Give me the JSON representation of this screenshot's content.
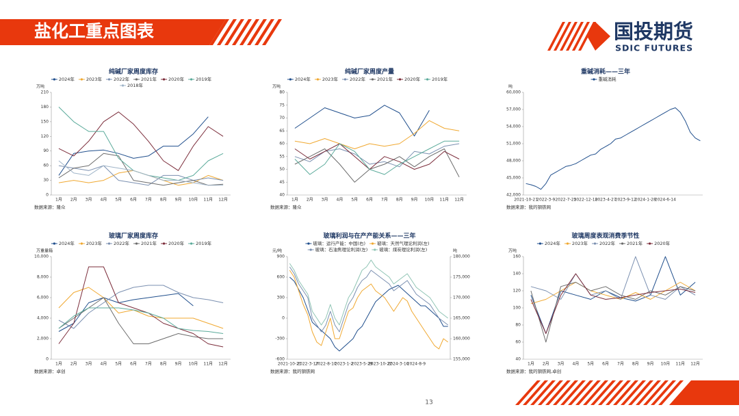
{
  "header": {
    "title": "盐化工重点图表",
    "logo_cn": "国投期货",
    "logo_en": "SDIC FUTURES"
  },
  "page_number": "13",
  "chart_data": [
    {
      "type": "line",
      "title": "纯碱厂家周度库存",
      "y_label": "万吨",
      "source": "数据来源：隆众",
      "categories": [
        "1月",
        "2月",
        "3月",
        "4月",
        "5月",
        "6月",
        "7月",
        "8月",
        "9月",
        "10月",
        "11月",
        "12月"
      ],
      "ylim": [
        0,
        210
      ],
      "yticks": [
        0,
        30,
        60,
        90,
        120,
        150,
        180,
        210
      ],
      "series": [
        {
          "name": "2024年",
          "color": "#1f4e8c",
          "values": [
            40,
            85,
            90,
            92,
            85,
            75,
            80,
            100,
            100,
            125,
            160,
            null
          ]
        },
        {
          "name": "2023年",
          "color": "#f0a830",
          "values": [
            25,
            30,
            25,
            30,
            45,
            50,
            40,
            30,
            20,
            25,
            40,
            30
          ]
        },
        {
          "name": "2022年",
          "color": "#7a8fb0",
          "values": [
            60,
            55,
            50,
            60,
            30,
            25,
            20,
            40,
            40,
            30,
            35,
            30
          ]
        },
        {
          "name": "2021年",
          "color": "#6b6b6b",
          "values": [
            35,
            55,
            60,
            85,
            80,
            30,
            25,
            20,
            25,
            30,
            20,
            22
          ]
        },
        {
          "name": "2020年",
          "color": "#7b2c3a",
          "values": [
            95,
            80,
            110,
            150,
            170,
            145,
            110,
            70,
            50,
            100,
            140,
            120
          ]
        },
        {
          "name": "2019年",
          "color": "#5aaa9a",
          "values": [
            180,
            150,
            130,
            130,
            75,
            50,
            40,
            35,
            30,
            40,
            70,
            85
          ]
        },
        {
          "name": "2018年",
          "color": "#9fb4c8",
          "values": [
            70,
            45,
            40,
            60,
            55,
            50,
            40,
            30,
            30,
            25,
            20,
            20
          ]
        }
      ]
    },
    {
      "type": "line",
      "title": "纯碱厂家周度产量",
      "y_label": "万吨",
      "source": "数据来源：隆众",
      "categories": [
        "1月",
        "2月",
        "3月",
        "4月",
        "5月",
        "6月",
        "7月",
        "8月",
        "9月",
        "10月",
        "11月",
        "12月"
      ],
      "ylim": [
        40,
        80
      ],
      "yticks": [
        40,
        45,
        50,
        55,
        60,
        65,
        70,
        75,
        80
      ],
      "series": [
        {
          "name": "2024年",
          "color": "#1f4e8c",
          "values": [
            66,
            70,
            74,
            72,
            70,
            71,
            75,
            72,
            63,
            73,
            null,
            null
          ]
        },
        {
          "name": "2023年",
          "color": "#f0a830",
          "values": [
            61,
            60,
            62,
            60,
            58,
            60,
            59,
            60,
            64,
            69,
            66,
            65
          ]
        },
        {
          "name": "2022年",
          "color": "#7a8fb0",
          "values": [
            55,
            53,
            57,
            58,
            56,
            52,
            53,
            51,
            57,
            56,
            59,
            60
          ]
        },
        {
          "name": "2021年",
          "color": "#6b6b6b",
          "values": [
            52,
            55,
            58,
            52,
            45,
            50,
            52,
            55,
            51,
            55,
            58,
            47
          ]
        },
        {
          "name": "2020年",
          "color": "#7b2c3a",
          "values": [
            58,
            54,
            57,
            60,
            55,
            50,
            55,
            53,
            50,
            52,
            57,
            54
          ]
        },
        {
          "name": "2019年",
          "color": "#5aaa9a",
          "values": [
            54,
            48,
            52,
            60,
            57,
            50,
            48,
            52,
            55,
            58,
            61,
            61
          ]
        }
      ]
    },
    {
      "type": "line",
      "title": "重碱消耗——三年",
      "y_label": "吨",
      "source": "数据来源：我的钢铁网",
      "categories": [
        "2021-10-21",
        null,
        null,
        null,
        "2022-3-9",
        null,
        null,
        null,
        "2022-7-25",
        null,
        null,
        null,
        "2022-12-10",
        null,
        null,
        null,
        "2023-4-27",
        null,
        null,
        null,
        "2023-9-12",
        null,
        null,
        null,
        "2024-1-28",
        null,
        null,
        null,
        "2024-6-14",
        null,
        null,
        null,
        null,
        null,
        null,
        null
      ],
      "ylim": [
        42000,
        60000
      ],
      "yticks": [
        {
          "value": 42000,
          "label": "42,000"
        },
        {
          "value": 45000,
          "label": "45,000"
        },
        {
          "value": 48000,
          "label": "48,000"
        },
        {
          "value": 51000,
          "label": "51,000"
        },
        {
          "value": 54000,
          "label": "54,000"
        },
        {
          "value": 57000,
          "label": "57,000"
        },
        {
          "value": 60000,
          "label": "60,000"
        }
      ],
      "series": [
        {
          "name": "重碱消耗",
          "color": "#1f4e8c",
          "values": [
            44000,
            43800,
            43500,
            43000,
            44000,
            45500,
            46000,
            46500,
            47000,
            47200,
            47500,
            48000,
            48500,
            49000,
            49200,
            50000,
            50500,
            51000,
            51800,
            52000,
            52500,
            53000,
            53500,
            54000,
            54500,
            55000,
            55500,
            56000,
            56500,
            57000,
            57300,
            56500,
            55000,
            53000,
            52000,
            51500
          ]
        }
      ]
    },
    {
      "type": "line",
      "title": "玻璃厂家周度库存",
      "y_label": "万重量箱",
      "source": "数据来源：卓创",
      "categories": [
        "1月",
        "2月",
        "3月",
        "4月",
        "5月",
        "6月",
        "7月",
        "8月",
        "9月",
        "10月",
        "11月",
        "12月"
      ],
      "ylim": [
        0,
        10000
      ],
      "yticks": [
        0,
        {
          "value": 2000,
          "label": "2,000"
        },
        {
          "value": 4000,
          "label": "4,000"
        },
        {
          "value": 6000,
          "label": "6,000"
        },
        {
          "value": 8000,
          "label": "8,000"
        },
        {
          "value": 10000,
          "label": "10,000"
        }
      ],
      "series": [
        {
          "name": "2024年",
          "color": "#1f4e8c",
          "values": [
            2700,
            3500,
            5500,
            6000,
            5500,
            5800,
            6000,
            6200,
            6400,
            5200,
            null,
            null
          ]
        },
        {
          "name": "2023年",
          "color": "#f0a830",
          "values": [
            5000,
            6500,
            7000,
            6000,
            4500,
            4800,
            4200,
            4000,
            4000,
            4000,
            3500,
            3000
          ]
        },
        {
          "name": "2022年",
          "color": "#7a8fb0",
          "values": [
            3800,
            3000,
            4500,
            5500,
            6500,
            7000,
            7200,
            7200,
            6500,
            6000,
            5800,
            5500
          ]
        },
        {
          "name": "2021年",
          "color": "#6b6b6b",
          "values": [
            3000,
            4000,
            5000,
            6000,
            3500,
            1500,
            1500,
            2000,
            2500,
            2200,
            2000,
            2000
          ]
        },
        {
          "name": "2020年",
          "color": "#7b2c3a",
          "values": [
            1500,
            3500,
            9000,
            9000,
            5500,
            5000,
            4500,
            3500,
            3000,
            2500,
            1500,
            1200
          ]
        },
        {
          "name": "2019年",
          "color": "#5aaa9a",
          "values": [
            3000,
            4200,
            5000,
            5000,
            5000,
            4800,
            4500,
            4000,
            3000,
            2800,
            2700,
            2500
          ]
        }
      ]
    },
    {
      "type": "line",
      "title": "玻璃利润与在产产能关系——三年",
      "y_label": "元/吨",
      "y2_label": "吨",
      "source": "数据来源：我的钢铁网",
      "categories": [
        "2021-10-21",
        null,
        null,
        null,
        "2022-3-17",
        null,
        null,
        null,
        "2022-8-10",
        null,
        null,
        null,
        "2023-1-2",
        null,
        null,
        null,
        "2023-5-29",
        null,
        null,
        null,
        "2023-10-22",
        null,
        null,
        null,
        "2024-3-16",
        null,
        null,
        null,
        "2024-8-9",
        null,
        null,
        null,
        null,
        null,
        null,
        null
      ],
      "ylim": [
        -600,
        900
      ],
      "yticks": [
        -600,
        -300,
        0,
        300,
        600,
        900
      ],
      "y2lim": [
        155000,
        180000
      ],
      "y2ticks": [
        {
          "value": 155000,
          "label": "155,000"
        },
        {
          "value": 160000,
          "label": "160,000"
        },
        {
          "value": 165000,
          "label": "165,000"
        },
        {
          "value": 170000,
          "label": "170,000"
        },
        {
          "value": 175000,
          "label": "175,000"
        },
        {
          "value": 180000,
          "label": "180,000"
        }
      ],
      "series": [
        {
          "name": "玻璃：运行产能：中国(右)",
          "color": "#1f4e8c",
          "axis": "y2",
          "values": [
            175000,
            174000,
            172000,
            170000,
            167000,
            164000,
            163000,
            162000,
            161000,
            160000,
            158000,
            157000,
            158000,
            159000,
            160000,
            162000,
            163000,
            165000,
            167000,
            169000,
            170000,
            171000,
            172000,
            172500,
            173000,
            172000,
            171000,
            170000,
            169000,
            168000,
            168000,
            167000,
            166000,
            165000,
            163000,
            163000
          ]
        },
        {
          "name": "玻璃：天然气理论利润(左)",
          "color": "#f0a830",
          "values": [
            700,
            600,
            400,
            200,
            50,
            -200,
            -350,
            -400,
            -200,
            0,
            -300,
            -300,
            -100,
            100,
            150,
            300,
            400,
            450,
            500,
            400,
            350,
            300,
            200,
            100,
            200,
            300,
            250,
            100,
            0,
            -100,
            -200,
            -300,
            -400,
            -450,
            -300,
            -350
          ]
        },
        {
          "name": "玻璃：石油焦理论利润(左)",
          "color": "#7a8fb0",
          "values": [
            750,
            650,
            500,
            400,
            300,
            0,
            -100,
            -200,
            -100,
            100,
            -100,
            -200,
            0,
            200,
            300,
            450,
            550,
            600,
            700,
            650,
            600,
            550,
            500,
            400,
            450,
            500,
            550,
            450,
            350,
            300,
            250,
            200,
            100,
            0,
            -50,
            -100
          ]
        },
        {
          "name": "玻璃：煤炭理论利润(左)",
          "color": "#8fc4b4",
          "values": [
            800,
            700,
            550,
            450,
            350,
            100,
            0,
            -100,
            0,
            200,
            0,
            -100,
            100,
            300,
            400,
            550,
            700,
            750,
            850,
            750,
            700,
            650,
            600,
            500,
            550,
            600,
            650,
            550,
            450,
            400,
            350,
            300,
            200,
            100,
            50,
            0
          ]
        }
      ]
    },
    {
      "type": "line",
      "title": "玻璃周度表观消费季节性",
      "y_label": "万吨",
      "source": "数据来源：我的钢铁网,卓创",
      "categories": [
        "1月",
        "2月",
        "3月",
        "4月",
        "5月",
        "6月",
        "7月",
        "8月",
        "9月",
        "10月",
        "11月",
        "12月"
      ],
      "ylim": [
        40,
        160
      ],
      "yticks": [
        40,
        60,
        80,
        100,
        120,
        140,
        160
      ],
      "series": [
        {
          "name": "2024年",
          "color": "#1f4e8c",
          "values": [
            115,
            70,
            120,
            115,
            110,
            120,
            112,
            108,
            115,
            160,
            115,
            130
          ]
        },
        {
          "name": "2023年",
          "color": "#f0a830",
          "values": [
            105,
            110,
            120,
            130,
            120,
            115,
            110,
            118,
            110,
            120,
            130,
            120
          ]
        },
        {
          "name": "2022年",
          "color": "#7a8fb0",
          "values": [
            125,
            120,
            110,
            140,
            115,
            120,
            110,
            160,
            115,
            110,
            125,
            115
          ]
        },
        {
          "name": "2021年",
          "color": "#6b6b6b",
          "values": [
            120,
            60,
            125,
            130,
            120,
            125,
            115,
            110,
            120,
            115,
            125,
            120
          ]
        },
        {
          "name": "2020年",
          "color": "#7b2c3a",
          "values": [
            110,
            70,
            115,
            140,
            115,
            110,
            112,
            115,
            118,
            120,
            122,
            118
          ]
        }
      ]
    }
  ]
}
